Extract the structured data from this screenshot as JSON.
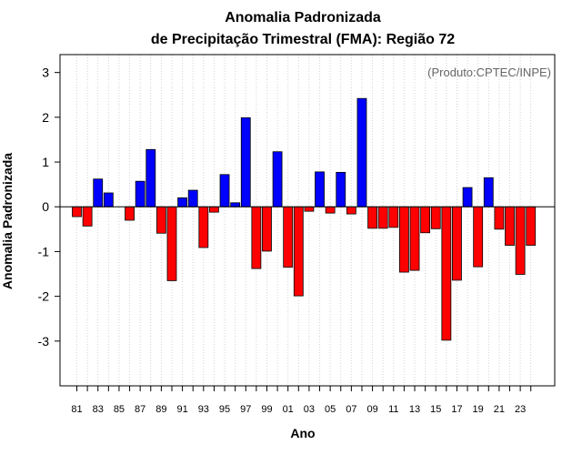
{
  "chart_data": {
    "type": "bar",
    "title_line1": "Anomalia Padronizada",
    "title_line2": "de Precipitação Trimestral (FMA): Região 72",
    "xlabel": "Ano",
    "ylabel": "Anomalia Padronizada",
    "annotation": "(Produto:CPTEC/INPE)",
    "ylim": [
      -4,
      3.4
    ],
    "yticks": [
      "-3",
      "-2",
      "-1",
      "0",
      "1",
      "2",
      "3"
    ],
    "xtick_labels": [
      "81",
      "83",
      "85",
      "87",
      "89",
      "91",
      "93",
      "95",
      "97",
      "99",
      "01",
      "03",
      "05",
      "07",
      "09",
      "11",
      "13",
      "15",
      "17",
      "19",
      "21",
      "23"
    ],
    "categories": [
      "1981",
      "1982",
      "1983",
      "1984",
      "1985",
      "1986",
      "1987",
      "1988",
      "1989",
      "1990",
      "1991",
      "1992",
      "1993",
      "1994",
      "1995",
      "1996",
      "1997",
      "1998",
      "1999",
      "2000",
      "2001",
      "2002",
      "2003",
      "2004",
      "2005",
      "2006",
      "2007",
      "2008",
      "2009",
      "2010",
      "2011",
      "2012",
      "2013",
      "2014",
      "2015",
      "2016",
      "2017",
      "2018",
      "2019",
      "2020",
      "2021",
      "2022",
      "2023",
      "2024"
    ],
    "values": [
      -0.22,
      -0.43,
      0.62,
      0.31,
      0.0,
      -0.3,
      0.57,
      1.28,
      -0.59,
      -1.65,
      0.2,
      0.37,
      -0.91,
      -0.12,
      0.72,
      0.09,
      1.99,
      -1.38,
      -0.99,
      1.23,
      -1.35,
      -1.99,
      -0.1,
      0.78,
      -0.14,
      0.77,
      -0.16,
      2.42,
      -0.48,
      -0.48,
      -0.46,
      -1.46,
      -1.42,
      -0.58,
      -0.49,
      -2.98,
      -1.64,
      0.43,
      -1.34,
      0.65,
      -0.5,
      -0.86,
      -1.51,
      -0.86
    ],
    "colors": {
      "positive": "#0000ff",
      "negative": "#ff0000",
      "grid": "#d3d3d3",
      "frame": "#000000"
    }
  }
}
